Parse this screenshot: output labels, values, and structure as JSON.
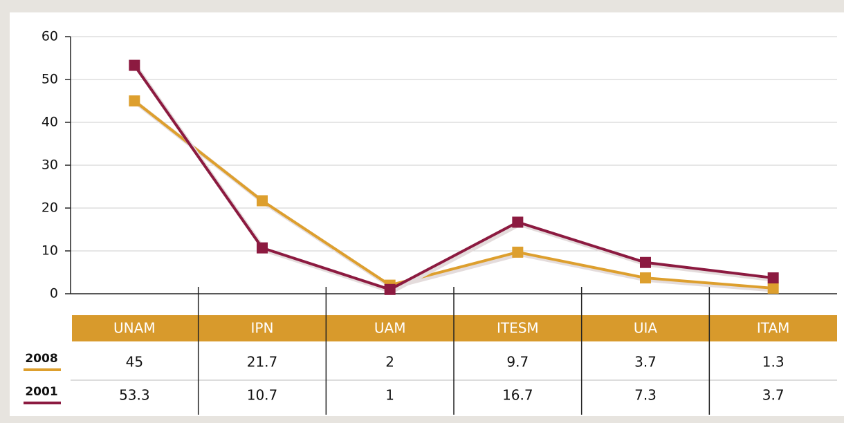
{
  "chart_data": {
    "type": "line",
    "categories": [
      "UNAM",
      "IPN",
      "UAM",
      "ITESM",
      "UIA",
      "ITAM"
    ],
    "series": [
      {
        "name": "2008",
        "color": "#dd9f2e",
        "values": [
          45,
          21.7,
          2,
          9.7,
          3.7,
          1.3
        ]
      },
      {
        "name": "2001",
        "color": "#8c1a40",
        "values": [
          53.3,
          10.7,
          1,
          16.7,
          7.3,
          3.7
        ]
      }
    ],
    "ylim": [
      0,
      60
    ],
    "yticks": [
      0,
      10,
      20,
      30,
      40,
      50,
      60
    ],
    "grid": true
  }
}
